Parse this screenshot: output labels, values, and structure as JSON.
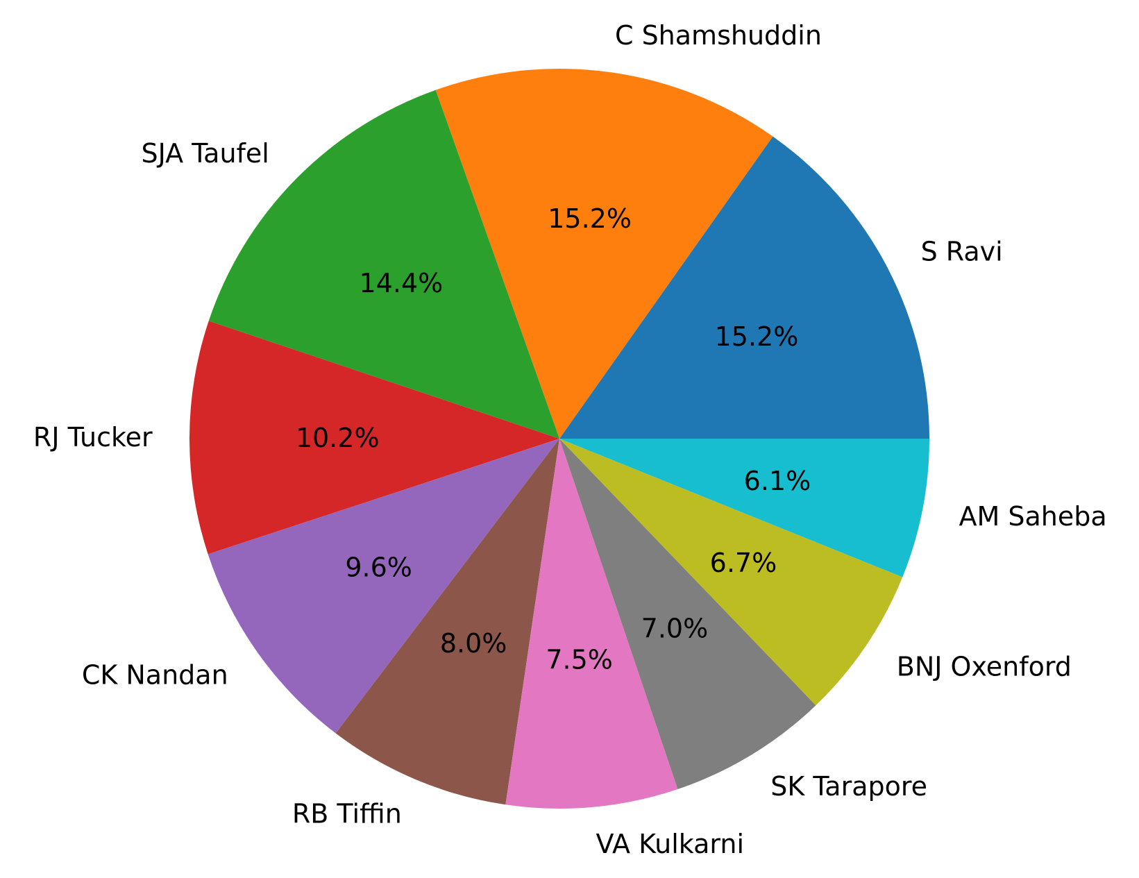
{
  "chart_data": {
    "type": "pie",
    "start_angle_deg": 0,
    "direction": "counterclockwise",
    "slices": [
      {
        "label": "S Ravi",
        "value": 15.2,
        "pct_label": "15.2%",
        "color": "#1f77b4"
      },
      {
        "label": "C Shamshuddin",
        "value": 15.2,
        "pct_label": "15.2%",
        "color": "#ff7f0e"
      },
      {
        "label": "SJA Taufel",
        "value": 14.4,
        "pct_label": "14.4%",
        "color": "#2ca02c"
      },
      {
        "label": "RJ Tucker",
        "value": 10.2,
        "pct_label": "10.2%",
        "color": "#d62728"
      },
      {
        "label": "CK Nandan",
        "value": 9.6,
        "pct_label": "9.6%",
        "color": "#9467bd"
      },
      {
        "label": "RB Tiffin",
        "value": 8.0,
        "pct_label": "8.0%",
        "color": "#8c564b"
      },
      {
        "label": "VA Kulkarni",
        "value": 7.5,
        "pct_label": "7.5%",
        "color": "#e377c2"
      },
      {
        "label": "SK Tarapore",
        "value": 7.0,
        "pct_label": "7.0%",
        "color": "#7f7f7f"
      },
      {
        "label": "BNJ Oxenford",
        "value": 6.7,
        "pct_label": "6.7%",
        "color": "#bcbd22"
      },
      {
        "label": "AM Saheba",
        "value": 6.1,
        "pct_label": "6.1%",
        "color": "#17becf"
      }
    ]
  }
}
